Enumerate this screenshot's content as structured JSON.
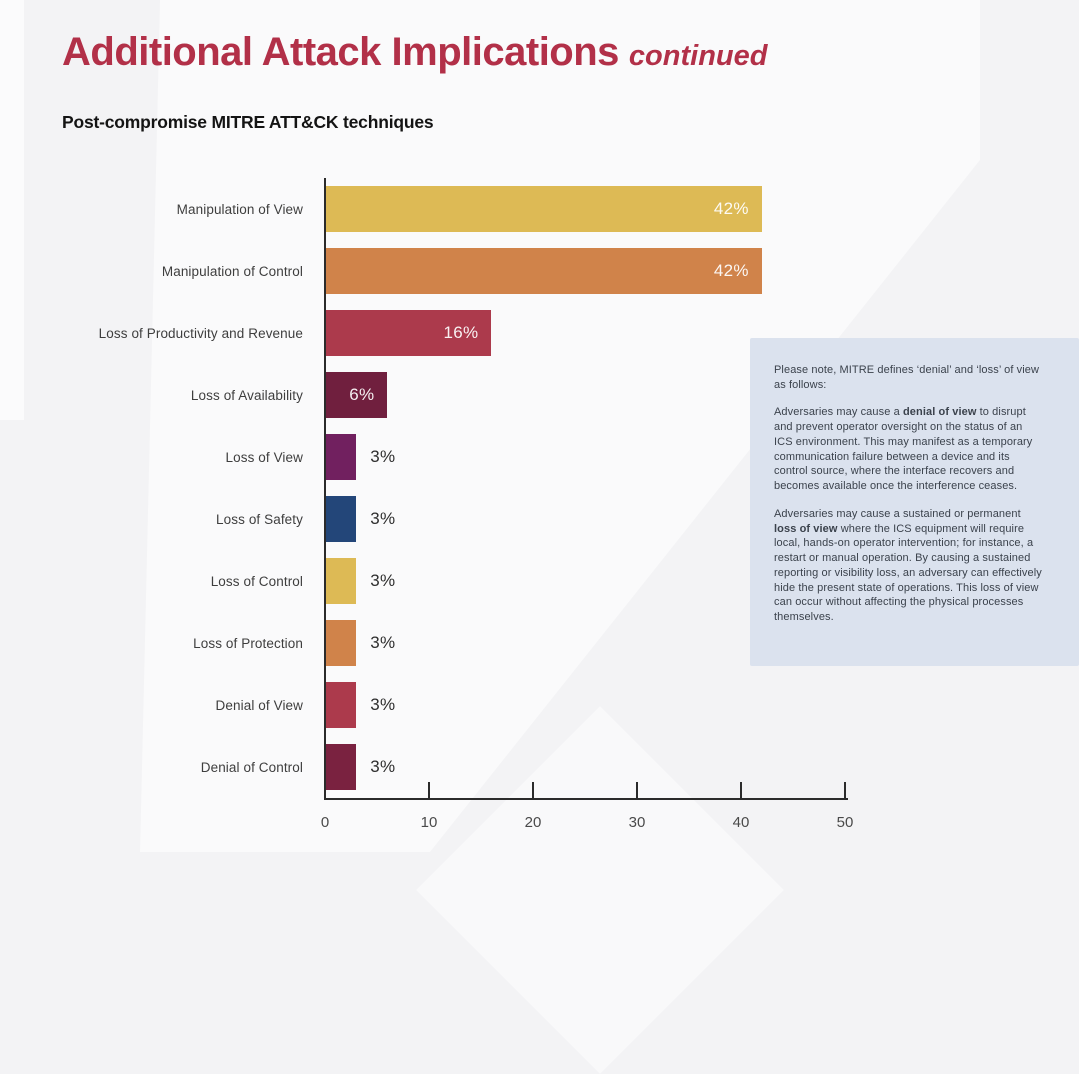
{
  "page": {
    "title": "Additional Attack Implications",
    "title_suffix": "continued"
  },
  "colors": {
    "title_accent": "#B23048",
    "axis": "#2B2B2B",
    "category_label": "#3E3E3E",
    "tick_label": "#4A4A4A",
    "value_label_inside": "#FFFFFF",
    "value_label_outside": "#2E2E2E",
    "note_background": "#DBE2EE",
    "note_text": "#3B424C",
    "page_background": "#F3F3F5"
  },
  "chart_data": {
    "type": "bar",
    "orientation": "horizontal",
    "title": "Post-compromise MITRE ATT&CK techniques",
    "categories": [
      "Manipulation of View",
      "Manipulation of Control",
      "Loss of Productivity and Revenue",
      "Loss of Availability",
      "Loss of View",
      "Loss of Safety",
      "Loss of Control",
      "Loss of Protection",
      "Denial of View",
      "Denial of Control"
    ],
    "values": [
      42,
      42,
      16,
      6,
      3,
      3,
      3,
      3,
      3,
      3
    ],
    "value_labels": [
      "42%",
      "42%",
      "16%",
      "6%",
      "3%",
      "3%",
      "3%",
      "3%",
      "3%",
      "3%"
    ],
    "bar_colors": [
      "#DDBA55",
      "#D0834A",
      "#AC3A4C",
      "#701F3E",
      "#71205F",
      "#234679",
      "#DDBA55",
      "#D0834A",
      "#AC3A4C",
      "#7A2240"
    ],
    "xlabel": "",
    "ylabel": "",
    "xlim": [
      0,
      50
    ],
    "x_ticks": [
      0,
      10,
      20,
      30,
      40,
      50
    ],
    "grid": false,
    "legend": false,
    "value_label_inside_min": 6
  },
  "note_box": {
    "paragraphs": [
      {
        "segments": [
          {
            "text": "Please note, MITRE defines ‘denial’ and ‘loss’ of view as follows:",
            "bold": false
          }
        ]
      },
      {
        "segments": [
          {
            "text": "Adversaries may cause a ",
            "bold": false
          },
          {
            "text": "denial of view",
            "bold": true
          },
          {
            "text": " to disrupt and prevent operator oversight on the status of an ICS environment. This may manifest as a temporary communication failure between a device and its control source, where the interface recovers and becomes available once the interference ceases.",
            "bold": false
          }
        ]
      },
      {
        "segments": [
          {
            "text": "Adversaries may cause a sustained or permanent ",
            "bold": false
          },
          {
            "text": "loss of view",
            "bold": true
          },
          {
            "text": " where the ICS equipment will require local, hands-on operator intervention; for instance, a restart or manual operation. By causing a sustained reporting or visibility loss, an adversary can effectively hide the present state of operations. This loss of view can occur without affecting the physical processes themselves.",
            "bold": false
          }
        ]
      }
    ]
  }
}
